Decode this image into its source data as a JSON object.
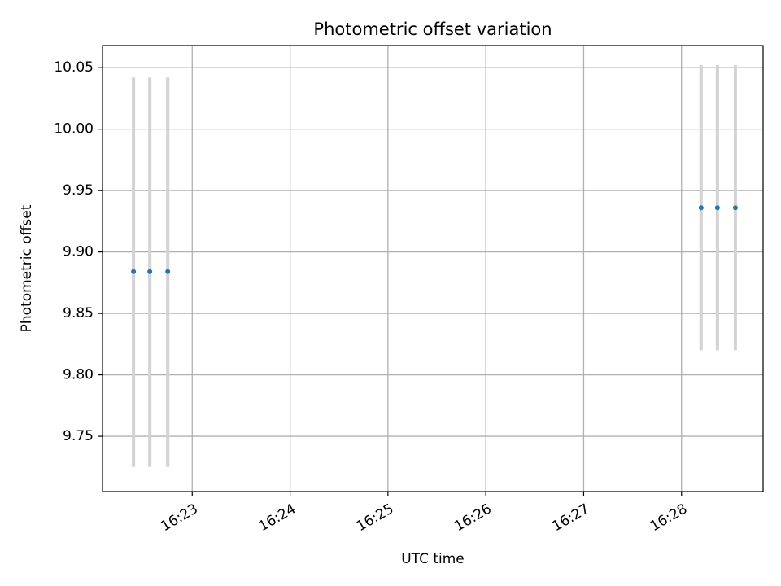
{
  "chart_data": {
    "type": "scatter",
    "title": "Photometric offset variation",
    "xlabel": "UTC time",
    "ylabel": "Photometric offset",
    "x_ticks": [
      "16:23",
      "16:24",
      "16:25",
      "16:26",
      "16:27",
      "16:28"
    ],
    "y_ticks": [
      "9.75",
      "9.80",
      "9.85",
      "9.90",
      "9.95",
      "10.00",
      "10.05"
    ],
    "xlim": [
      "16:22:05",
      "16:28:50"
    ],
    "ylim": [
      9.705,
      10.068
    ],
    "grid": true,
    "colors": {
      "points": "#1f77b4",
      "errorbars": "#d3d3d3",
      "grid": "#b0b0b0"
    },
    "points": [
      {
        "x": "16:22:24",
        "y": 9.884,
        "yerr_low": 9.725,
        "yerr_high": 10.042
      },
      {
        "x": "16:22:34",
        "y": 9.884,
        "yerr_low": 9.725,
        "yerr_high": 10.042
      },
      {
        "x": "16:22:45",
        "y": 9.884,
        "yerr_low": 9.725,
        "yerr_high": 10.042
      },
      {
        "x": "16:28:12",
        "y": 9.936,
        "yerr_low": 9.82,
        "yerr_high": 10.052
      },
      {
        "x": "16:28:22",
        "y": 9.936,
        "yerr_low": 9.82,
        "yerr_high": 10.052
      },
      {
        "x": "16:28:33",
        "y": 9.936,
        "yerr_low": 9.82,
        "yerr_high": 10.052
      }
    ]
  }
}
